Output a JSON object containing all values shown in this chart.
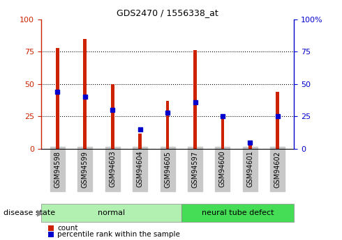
{
  "title": "GDS2470 / 1556338_at",
  "samples": [
    "GSM94598",
    "GSM94599",
    "GSM94603",
    "GSM94604",
    "GSM94605",
    "GSM94597",
    "GSM94600",
    "GSM94601",
    "GSM94602"
  ],
  "red_values": [
    78,
    85,
    50,
    12,
    37,
    76,
    25,
    4,
    44
  ],
  "blue_values": [
    44,
    40,
    30,
    15,
    28,
    36,
    25,
    5,
    25
  ],
  "normal_group": {
    "label": "normal",
    "indices": [
      0,
      1,
      2,
      3,
      4
    ],
    "color": "#b2f0b2"
  },
  "ntd_group": {
    "label": "neural tube defect",
    "indices": [
      5,
      6,
      7,
      8
    ],
    "color": "#44dd55"
  },
  "left_yticks": [
    0,
    25,
    50,
    75,
    100
  ],
  "right_yticks": [
    0,
    25,
    50,
    75,
    100
  ],
  "right_yticklabels": [
    "0",
    "25",
    "50",
    "75",
    "100%"
  ],
  "left_ycolor": "#cc2200",
  "right_ycolor": "#0000cc",
  "bar_color": "#cc2200",
  "marker_color": "#0000cc",
  "grid_color": "black",
  "background_color": "#ffffff",
  "tick_bg_color": "#c8c8c8",
  "legend_red_label": "count",
  "legend_blue_label": "percentile rank within the sample",
  "disease_state_label": "disease state",
  "bar_width": 0.12
}
